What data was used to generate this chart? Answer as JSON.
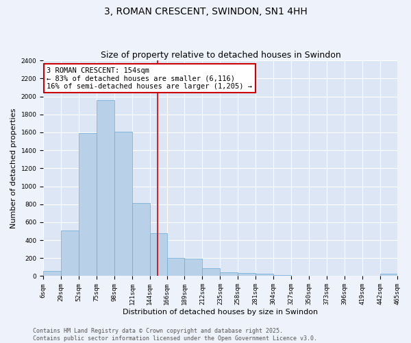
{
  "title": "3, ROMAN CRESCENT, SWINDON, SN1 4HH",
  "subtitle": "Size of property relative to detached houses in Swindon",
  "xlabel": "Distribution of detached houses by size in Swindon",
  "ylabel": "Number of detached properties",
  "bar_color": "#b8d0e8",
  "bar_edge_color": "#6aaad4",
  "background_color": "#dce6f5",
  "grid_color": "#ffffff",
  "vline_color": "#cc0000",
  "vline_x": 154,
  "annotation_text": "3 ROMAN CRESCENT: 154sqm\n← 83% of detached houses are smaller (6,116)\n16% of semi-detached houses are larger (1,205) →",
  "annotation_box_color": "#cc0000",
  "bin_edges": [
    6,
    29,
    52,
    75,
    98,
    121,
    144,
    166,
    189,
    212,
    235,
    258,
    281,
    304,
    327,
    350,
    373,
    396,
    419,
    442,
    465
  ],
  "bin_heights": [
    55,
    510,
    1590,
    1960,
    1610,
    810,
    480,
    200,
    195,
    90,
    45,
    35,
    25,
    15,
    5,
    5,
    0,
    5,
    0,
    25
  ],
  "ylim": [
    0,
    2400
  ],
  "yticks": [
    0,
    200,
    400,
    600,
    800,
    1000,
    1200,
    1400,
    1600,
    1800,
    2000,
    2200,
    2400
  ],
  "xtick_labels": [
    "6sqm",
    "29sqm",
    "52sqm",
    "75sqm",
    "98sqm",
    "121sqm",
    "144sqm",
    "166sqm",
    "189sqm",
    "212sqm",
    "235sqm",
    "258sqm",
    "281sqm",
    "304sqm",
    "327sqm",
    "350sqm",
    "373sqm",
    "396sqm",
    "419sqm",
    "442sqm",
    "465sqm"
  ],
  "footer1": "Contains HM Land Registry data © Crown copyright and database right 2025.",
  "footer2": "Contains public sector information licensed under the Open Government Licence v3.0.",
  "title_fontsize": 10,
  "subtitle_fontsize": 9,
  "xlabel_fontsize": 8,
  "ylabel_fontsize": 8,
  "tick_fontsize": 6.5,
  "annotation_fontsize": 7.5,
  "footer_fontsize": 6
}
